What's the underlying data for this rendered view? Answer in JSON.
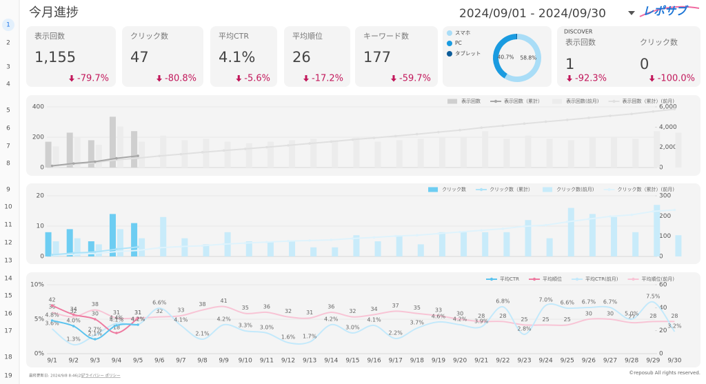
{
  "row_numbers": [
    1,
    2,
    3,
    4,
    5,
    6,
    7,
    8,
    9,
    10,
    11,
    12,
    13,
    14,
    15,
    16,
    17,
    18,
    19
  ],
  "header": {
    "title": "今月進捗",
    "date_range": "2024/09/01 - 2024/09/30",
    "logo": "レポサブ"
  },
  "kpis": [
    {
      "label": "表示回数",
      "value": "1,155",
      "change": "-79.7%"
    },
    {
      "label": "クリック数",
      "value": "47",
      "change": "-80.8%"
    },
    {
      "label": "平均CTR",
      "value": "4.1%",
      "change": "-5.6%"
    },
    {
      "label": "平均順位",
      "value": "26",
      "change": "-17.2%"
    },
    {
      "label": "キーワード数",
      "value": "177",
      "change": "-59.7%"
    }
  ],
  "discover": {
    "title": "DISCOVER",
    "kpis": [
      {
        "label": "表示回数",
        "value": "1",
        "change": "-92.3%"
      },
      {
        "label": "クリック数",
        "value": "0",
        "change": "-100.0%"
      }
    ]
  },
  "footer": {
    "updated": "最終更新日: 2024/9/8 8:46:25",
    "privacy": "プライバシー ポリシー",
    "copyright": "©reposub All rights reserved."
  },
  "chart_data": [
    {
      "type": "pie",
      "donut": true,
      "categories": [
        "スマホ",
        "PC",
        "タブレット"
      ],
      "values": [
        58.8,
        40.7,
        0.5
      ],
      "value_labels": [
        "58.8%",
        "40.7%",
        null
      ],
      "colors": [
        "#a9ddf7",
        "#1a9be0",
        "#0d5c99"
      ]
    },
    {
      "type": "bar-line",
      "grid": true,
      "ylim": [
        0,
        400
      ],
      "yticks": [
        0,
        200,
        400
      ],
      "y2lim": [
        0,
        6000
      ],
      "y2ticks": [
        0,
        {
          "value": 2000,
          "label": "2,000"
        },
        {
          "value": 4000,
          "label": "4,000"
        },
        {
          "value": 6000,
          "label": "6,000"
        }
      ],
      "series": [
        {
          "name": "表示回数",
          "kind": "bar",
          "color": "#cfcfcf",
          "values": [
            170,
            230,
            180,
            335,
            240,
            null,
            null,
            null,
            null,
            null,
            null,
            null,
            null,
            null,
            null,
            null,
            null,
            null,
            null,
            null,
            null,
            null,
            null,
            null,
            null,
            null,
            null,
            null,
            null,
            null
          ]
        },
        {
          "name": "表示回数（累計）",
          "kind": "line",
          "axis": "y2",
          "color": "#a6a6a6",
          "dots": true,
          "values": [
            170,
            400,
            580,
            915,
            1155,
            null,
            null,
            null,
            null,
            null,
            null,
            null,
            null,
            null,
            null,
            null,
            null,
            null,
            null,
            null,
            null,
            null,
            null,
            null,
            null,
            null,
            null,
            null,
            null,
            null
          ]
        },
        {
          "name": "表示回数(前月)",
          "kind": "bar",
          "color": "#ececec",
          "values": [
            140,
            200,
            150,
            270,
            170,
            210,
            180,
            190,
            170,
            160,
            170,
            180,
            190,
            180,
            200,
            170,
            180,
            190,
            200,
            200,
            240,
            190,
            210,
            190,
            180,
            200,
            200,
            190,
            240,
            230
          ]
        },
        {
          "name": "表示回数（累計）(前月)",
          "kind": "line",
          "axis": "y2",
          "color": "#e0e0e0",
          "dots": true,
          "values": [
            140,
            340,
            490,
            760,
            930,
            1140,
            1320,
            1510,
            1680,
            1840,
            2010,
            2190,
            2380,
            2560,
            2760,
            2930,
            3110,
            3300,
            3500,
            3700,
            3940,
            4130,
            4340,
            4530,
            4710,
            4910,
            5110,
            5300,
            5540,
            5770
          ]
        }
      ]
    },
    {
      "type": "bar-line",
      "grid": true,
      "ylim": [
        0,
        20
      ],
      "yticks": [
        0,
        10,
        20
      ],
      "y2lim": [
        0,
        300
      ],
      "y2ticks": [
        0,
        100,
        200,
        300
      ],
      "series": [
        {
          "name": "クリック数",
          "kind": "bar",
          "color": "#6dcdf2",
          "values": [
            8,
            9,
            5,
            14,
            11,
            null,
            null,
            null,
            null,
            null,
            null,
            null,
            null,
            null,
            null,
            null,
            null,
            null,
            null,
            null,
            null,
            null,
            null,
            null,
            null,
            null,
            null,
            null,
            null,
            null
          ]
        },
        {
          "name": "クリック数（累計）",
          "kind": "line",
          "axis": "y2",
          "color": "#aee3f8",
          "dots": true,
          "values": [
            8,
            17,
            22,
            36,
            47,
            null,
            null,
            null,
            null,
            null,
            null,
            null,
            null,
            null,
            null,
            null,
            null,
            null,
            null,
            null,
            null,
            null,
            null,
            null,
            null,
            null,
            null,
            null,
            null,
            null
          ]
        },
        {
          "name": "クリック数(前月)",
          "kind": "bar",
          "color": "#c8ebfa",
          "values": [
            5,
            6,
            4,
            9,
            6,
            13,
            6,
            4,
            8,
            5,
            5,
            5,
            3,
            3,
            7,
            5,
            7,
            4,
            8,
            8,
            8,
            8,
            12,
            6,
            16,
            14,
            13,
            8,
            17,
            7
          ]
        },
        {
          "name": "クリック数（累計）(前月)",
          "kind": "line",
          "axis": "y2",
          "color": "#dff3fc",
          "dots": true,
          "values": [
            5,
            11,
            15,
            24,
            30,
            43,
            49,
            53,
            61,
            66,
            71,
            76,
            79,
            82,
            89,
            94,
            101,
            105,
            113,
            121,
            129,
            137,
            149,
            155,
            171,
            185,
            198,
            206,
            223,
            230
          ]
        }
      ]
    },
    {
      "type": "line",
      "grid": true,
      "categories": [
        "9/1",
        "9/2",
        "9/3",
        "9/4",
        "9/5",
        "9/6",
        "9/7",
        "9/8",
        "9/9",
        "9/10",
        "9/11",
        "9/12",
        "9/13",
        "9/14",
        "9/15",
        "9/16",
        "9/17",
        "9/18",
        "9/19",
        "9/20",
        "9/21",
        "9/22",
        "9/23",
        "9/24",
        "9/25",
        "9/26",
        "9/27",
        "9/28",
        "9/29",
        "9/30"
      ],
      "ylim": [
        0,
        10
      ],
      "yticks": [
        {
          "value": 0,
          "label": "0%"
        },
        {
          "value": 5,
          "label": "5%"
        },
        {
          "value": 10,
          "label": "10%"
        }
      ],
      "y2lim": [
        0,
        60
      ],
      "y2ticks": [
        0,
        20,
        40,
        60
      ],
      "series": [
        {
          "name": "平均CTR",
          "color": "#5bc3ee",
          "dots": true,
          "values": [
            4.8,
            4.0,
            2.1,
            4.1,
            4.2,
            null,
            null,
            null,
            null,
            null,
            null,
            null,
            null,
            null,
            null,
            null,
            null,
            null,
            null,
            null,
            null,
            null,
            null,
            null,
            null,
            null,
            null,
            null,
            null,
            null
          ],
          "value_labels": [
            "4.8%",
            "4.0%",
            "2.1%",
            "4.1%",
            "4.2%",
            null,
            null,
            null,
            null,
            null,
            null,
            null,
            null,
            null,
            null,
            null,
            null,
            null,
            null,
            null,
            null,
            null,
            null,
            null,
            null,
            null,
            null,
            null,
            null,
            null
          ]
        },
        {
          "name": "平均順位",
          "axis": "y2",
          "color": "#ee7aa0",
          "dots": true,
          "values": [
            42,
            34,
            30,
            18,
            31,
            null,
            null,
            null,
            null,
            null,
            null,
            null,
            null,
            null,
            null,
            null,
            null,
            null,
            null,
            null,
            null,
            null,
            null,
            null,
            null,
            null,
            null,
            null,
            null,
            null
          ]
        },
        {
          "name": "平均CTR(前月)",
          "color": "#c3e9fb",
          "values": [
            3.6,
            1.3,
            2.7,
            4.4,
            4.2,
            6.6,
            4.1,
            2.1,
            4.2,
            3.3,
            3.0,
            1.6,
            1.7,
            4.2,
            3.0,
            4.1,
            2.2,
            3.7,
            4.6,
            4.2,
            3.9,
            6.8,
            2.8,
            7.0,
            6.6,
            6.7,
            6.7,
            5.0,
            7.5,
            3.2
          ],
          "value_labels": [
            "3.6%",
            "1.3%",
            "2.7%",
            "4.4%",
            "4.2%",
            "6.6%",
            "4.1%",
            "2.1%",
            "4.2%",
            "3.3%",
            "3.0%",
            "1.6%",
            "1.7%",
            "4.2%",
            "3.0%",
            "4.1%",
            "2.2%",
            "3.7%",
            "4.6%",
            "4.2%",
            "3.9%",
            "6.8%",
            "2.8%",
            "7.0%",
            "6.6%",
            "6.7%",
            "6.7%",
            "5.0%",
            "7.5%",
            "3.2%"
          ]
        },
        {
          "name": "平均順位(前月)",
          "axis": "y2",
          "color": "#f8c4d5",
          "values": [
            36,
            32,
            38,
            31,
            31,
            32,
            33,
            38,
            41,
            35,
            36,
            32,
            31,
            36,
            32,
            34,
            37,
            35,
            33,
            30,
            28,
            28,
            25,
            25,
            25,
            30,
            30,
            27,
            28,
            28
          ]
        }
      ]
    }
  ]
}
